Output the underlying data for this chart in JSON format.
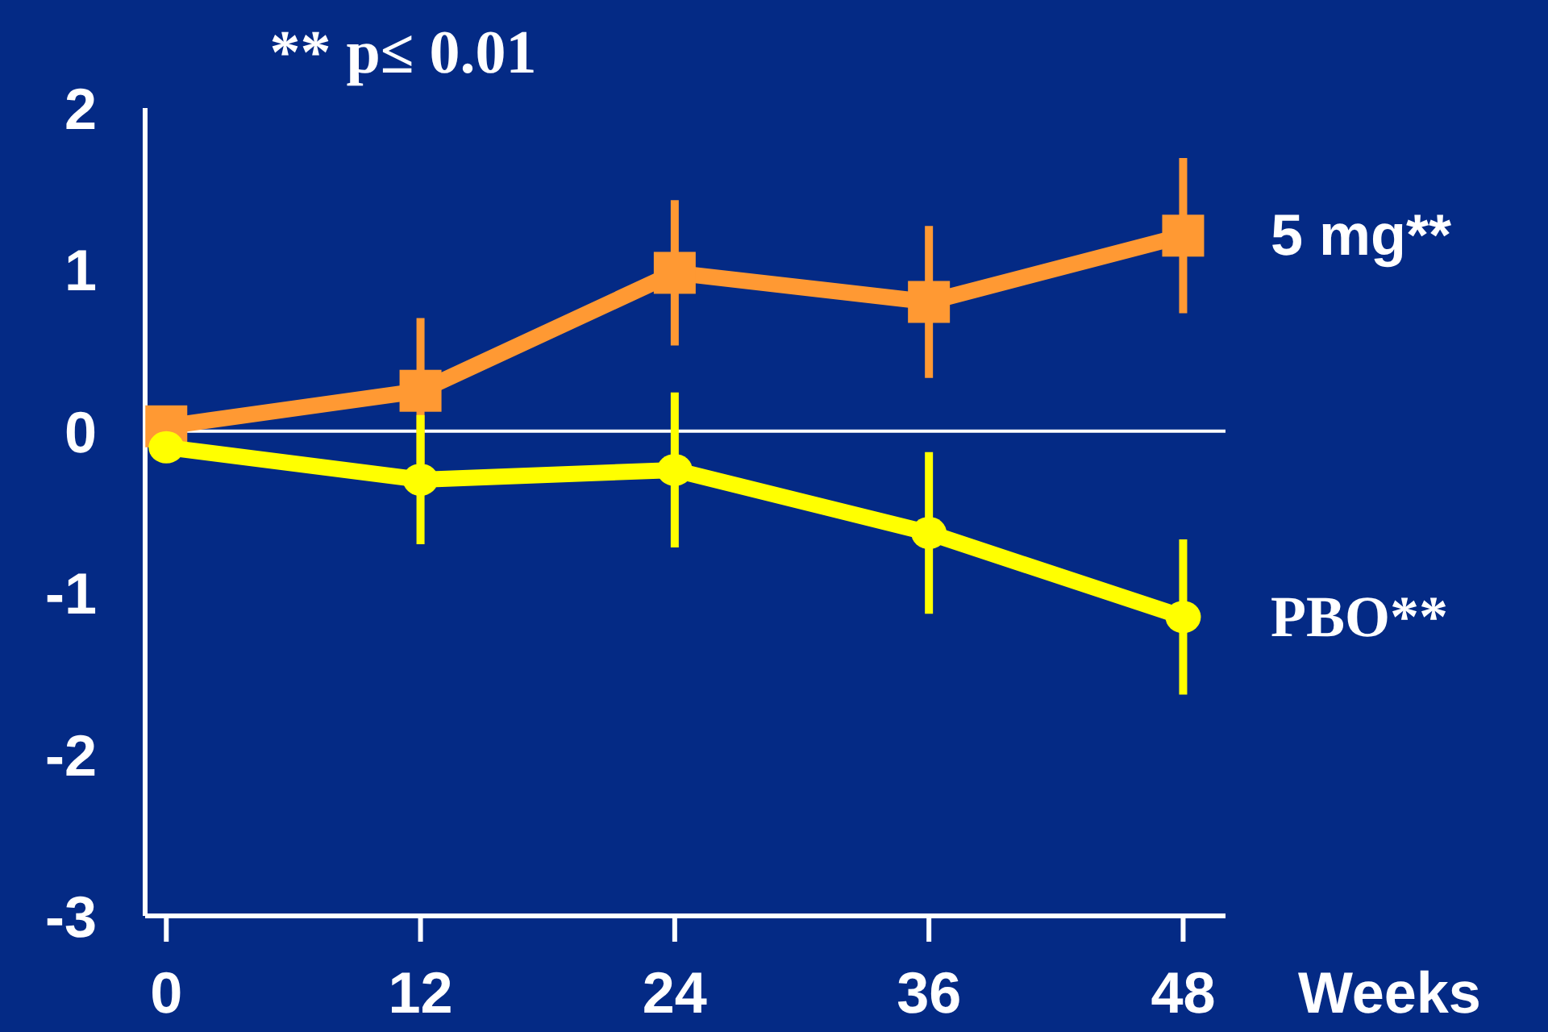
{
  "chart_data": {
    "type": "line",
    "title": "** p≤ 0.01",
    "xlabel": "Weeks",
    "x": [
      0,
      12,
      24,
      36,
      48
    ],
    "xlim": [
      -1,
      50
    ],
    "xticks": [
      0,
      12,
      24,
      36,
      48
    ],
    "ylim": [
      -3,
      2
    ],
    "yticks": [
      -3,
      -2,
      -1,
      0,
      1,
      2
    ],
    "grid": false,
    "legend": false,
    "ref_lines": [
      {
        "axis": "y",
        "value": 0,
        "color": "#ffffff"
      }
    ],
    "series": [
      {
        "name": "5 mg**",
        "color": "#ff9933",
        "marker": "square",
        "values": [
          0.03,
          0.25,
          0.98,
          0.8,
          1.21
        ],
        "errors": [
          null,
          0.45,
          0.45,
          0.47,
          0.48
        ]
      },
      {
        "name": "PBO**",
        "color": "#ffff00",
        "marker": "circle",
        "values": [
          -0.1,
          -0.3,
          -0.24,
          -0.63,
          -1.15
        ],
        "errors": [
          null,
          0.4,
          0.48,
          0.5,
          0.48
        ]
      }
    ]
  }
}
